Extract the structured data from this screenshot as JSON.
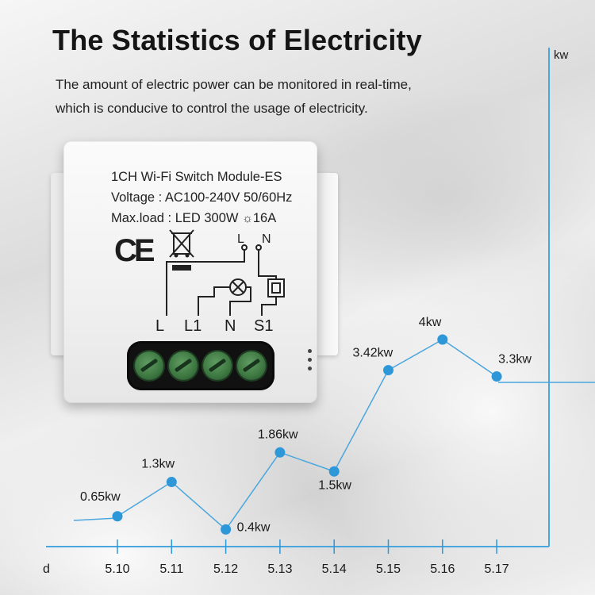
{
  "header": {
    "title": "The Statistics of Electricity",
    "subtitle_line1": "The amount of electric power can be monitored in real-time,",
    "subtitle_line2": "which is conducive to control the usage of electricity."
  },
  "device": {
    "model": "1CH Wi-Fi Switch Module-ES",
    "voltage": "Voltage : AC100-240V 50/60Hz",
    "maxload_prefix": "Max.load : LED 300W",
    "maxload_suffix": "16A",
    "ce_mark": "CE",
    "wiring_top_labels": [
      "L",
      "N"
    ],
    "terminals": [
      "L",
      "L1",
      "N",
      "S1"
    ]
  },
  "colors": {
    "accent": "#2e97d8",
    "line": "#4aa6de",
    "axis": "#4aa6de",
    "text": "#1a1a1a"
  },
  "chart_data": {
    "type": "line",
    "title": "",
    "xlabel": "d",
    "ylabel": "kw",
    "x": [
      "5.10",
      "5.11",
      "5.12",
      "5.13",
      "5.14",
      "5.15",
      "5.16",
      "5.17"
    ],
    "values": [
      0.65,
      1.3,
      0.4,
      1.86,
      1.5,
      3.42,
      4,
      3.3
    ],
    "data_labels": [
      "0.65kw",
      "1.3kw",
      "0.4kw",
      "1.86kw",
      "1.5kw",
      "3.42kw",
      "4kw",
      "3.3kw"
    ],
    "ylim": [
      0,
      4.5
    ],
    "grid": false
  }
}
